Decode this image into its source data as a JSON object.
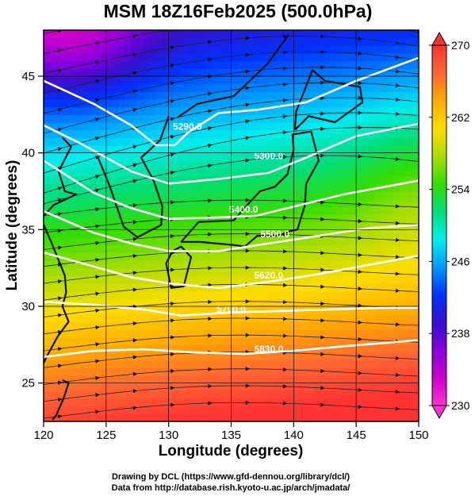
{
  "title": "MSM 18Z16Feb2025 (500.0hPa)",
  "xlabel": "Longitude (degrees)",
  "ylabel": "Latitude  (degrees)",
  "credits": [
    "Drawing by DCL (https://www.gfd-dennou.org/library/dcl/)",
    "Data from http://database.rish.kyoto-u.ac.jp/arch/jmadata/"
  ],
  "chart_data": {
    "type": "heatmap",
    "title": "MSM 18Z16Feb2025 (500.0hPa)",
    "xlabel": "Longitude (degrees)",
    "ylabel": "Latitude  (degrees)",
    "xlim": [
      120,
      150
    ],
    "ylim": [
      22.5,
      48
    ],
    "xticks": [
      120,
      125,
      130,
      135,
      140,
      145,
      150
    ],
    "yticks": [
      25,
      30,
      35,
      40,
      45
    ],
    "grid": true,
    "colorbar": {
      "min": 230,
      "max": 270,
      "ticks": [
        230,
        238,
        246,
        254,
        262,
        270
      ],
      "colors": [
        "#ff33cc",
        "#cc00cc",
        "#8800dd",
        "#3311cc",
        "#0033ff",
        "#0099ff",
        "#00eeee",
        "#00dd77",
        "#33dd00",
        "#aadd00",
        "#ffdd00",
        "#ffaa00",
        "#ff6633",
        "#ff3333"
      ]
    },
    "contours": [
      {
        "label": "5290.0",
        "points": [
          [
            120,
            44.7
          ],
          [
            124,
            43.2
          ],
          [
            127,
            41.8
          ],
          [
            129,
            40.5
          ],
          [
            130.5,
            40.5
          ],
          [
            131.5,
            41.3
          ],
          [
            134,
            42.6
          ],
          [
            137,
            42.8
          ],
          [
            141,
            43.3
          ],
          [
            145,
            44.7
          ],
          [
            150,
            46.2
          ]
        ]
      },
      {
        "label": "5300.0",
        "points": [
          [
            120,
            41.8
          ],
          [
            123,
            40.6
          ],
          [
            127,
            38.8
          ],
          [
            130,
            38
          ],
          [
            134,
            38.3
          ],
          [
            138,
            38.7
          ],
          [
            141,
            39.7
          ],
          [
            145,
            41.1
          ],
          [
            150,
            41.9
          ]
        ]
      },
      {
        "label": "5400.0",
        "points": [
          [
            120,
            39.5
          ],
          [
            124,
            37.4
          ],
          [
            127,
            36.4
          ],
          [
            130,
            35.7
          ],
          [
            134,
            35.8
          ],
          [
            137,
            35.9
          ],
          [
            140,
            36.5
          ],
          [
            144,
            37.3
          ],
          [
            150,
            38.2
          ]
        ]
      },
      {
        "label": "5500.0",
        "points": [
          [
            120,
            36.2
          ],
          [
            124,
            34.8
          ],
          [
            127,
            34.1
          ],
          [
            130,
            33.6
          ],
          [
            134,
            33.6
          ],
          [
            138,
            34.1
          ],
          [
            142,
            34.6
          ],
          [
            146,
            35.1
          ],
          [
            150,
            35.3
          ]
        ]
      },
      {
        "label": "5620.0",
        "points": [
          [
            120,
            33.5
          ],
          [
            124,
            32.6
          ],
          [
            127,
            31.9
          ],
          [
            130,
            31.5
          ],
          [
            134,
            31.2
          ],
          [
            138,
            31.6
          ],
          [
            142,
            32.1
          ],
          [
            146,
            32.7
          ],
          [
            150,
            33.3
          ]
        ]
      },
      {
        "label": "5700.0",
        "points": [
          [
            120,
            30.3
          ],
          [
            124,
            30.1
          ],
          [
            128,
            29.8
          ],
          [
            131,
            29.4
          ],
          [
            135,
            29.6
          ],
          [
            139,
            29.7
          ],
          [
            143,
            29.8
          ],
          [
            147,
            29.9
          ],
          [
            150,
            29.9
          ]
        ]
      },
      {
        "label": "5830.0",
        "points": [
          [
            120,
            26.7
          ],
          [
            124,
            27.1
          ],
          [
            128,
            27.2
          ],
          [
            132,
            27
          ],
          [
            136,
            26.9
          ],
          [
            140,
            27.1
          ],
          [
            144,
            27.4
          ],
          [
            147,
            27.6
          ],
          [
            150,
            27.8
          ]
        ]
      }
    ],
    "contour_label_positions": [
      {
        "label": "5290.0",
        "lon": 131.5,
        "lat": 41.5
      },
      {
        "label": "5300.0",
        "lon": 138,
        "lat": 39.6
      },
      {
        "label": "5400.0",
        "lon": 136,
        "lat": 36.1
      },
      {
        "label": "5500.0",
        "lon": 138.5,
        "lat": 34.5
      },
      {
        "label": "5620.0",
        "lon": 138,
        "lat": 31.8
      },
      {
        "label": "5700.0",
        "lon": 135,
        "lat": 29.6
      },
      {
        "label": "5830.0",
        "lon": 138,
        "lat": 27
      }
    ]
  }
}
